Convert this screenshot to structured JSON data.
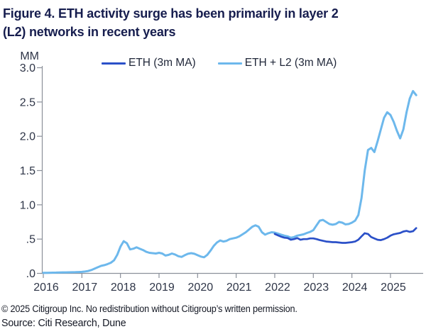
{
  "title": {
    "line1": "Figure 4. ETH activity surge has been primarily in layer 2",
    "line2": "(L2) networks in recent years"
  },
  "footer": {
    "copyright": "© 2025 Citigroup Inc. No redistribution without Citigroup’s written permission.",
    "source": "Source: Citi Research, Dune"
  },
  "chart_data": {
    "type": "line",
    "title": "ETH activity surge has been primarily in layer 2 (L2) networks in recent years",
    "unit_label": "MM",
    "xlabel": "",
    "ylabel": "MM",
    "ylim": [
      0,
      3.0
    ],
    "xlim": [
      2016,
      2025.75
    ],
    "grid": false,
    "legend_position": "top",
    "axis_color": "#8b909a",
    "label_color": "#2e3547",
    "y_ticks": [
      {
        "label": "3.0",
        "value": 3.0
      },
      {
        "label": "2.5",
        "value": 2.5
      },
      {
        "label": "2.0",
        "value": 2.0
      },
      {
        "label": "1.5",
        "value": 1.5
      },
      {
        "label": "1.0",
        "value": 1.0
      },
      {
        "label": ".5",
        "value": 0.5
      },
      {
        "label": ".0",
        "value": 0.0
      }
    ],
    "x_ticks": [
      {
        "label": "2016",
        "value": 2016
      },
      {
        "label": "2017",
        "value": 2017
      },
      {
        "label": "2018",
        "value": 2018
      },
      {
        "label": "2019",
        "value": 2019
      },
      {
        "label": "2020",
        "value": 2020
      },
      {
        "label": "2021",
        "value": 2021
      },
      {
        "label": "2022",
        "value": 2022
      },
      {
        "label": "2023",
        "value": 2023
      },
      {
        "label": "2024",
        "value": 2024
      },
      {
        "label": "2025",
        "value": 2025
      }
    ],
    "legend": [
      {
        "label": "ETH (3m MA)",
        "color": "#2b50c8"
      },
      {
        "label": "ETH + L2 (3m MA)",
        "color": "#6db8ec"
      }
    ],
    "series": [
      {
        "name": "ETH + L2 (3m MA)",
        "color": "#6db8ec",
        "start_year": 2016.0,
        "step_years": 0.0833333,
        "values": [
          0.008,
          0.008,
          0.009,
          0.01,
          0.011,
          0.013,
          0.014,
          0.015,
          0.016,
          0.017,
          0.018,
          0.02,
          0.022,
          0.028,
          0.035,
          0.05,
          0.07,
          0.09,
          0.11,
          0.12,
          0.135,
          0.155,
          0.19,
          0.27,
          0.39,
          0.47,
          0.44,
          0.35,
          0.36,
          0.38,
          0.36,
          0.34,
          0.315,
          0.3,
          0.295,
          0.29,
          0.3,
          0.29,
          0.26,
          0.27,
          0.29,
          0.275,
          0.25,
          0.24,
          0.265,
          0.285,
          0.295,
          0.285,
          0.265,
          0.245,
          0.235,
          0.27,
          0.33,
          0.4,
          0.45,
          0.48,
          0.465,
          0.475,
          0.5,
          0.51,
          0.52,
          0.54,
          0.57,
          0.6,
          0.64,
          0.68,
          0.7,
          0.68,
          0.6,
          0.565,
          0.585,
          0.6,
          0.595,
          0.58,
          0.565,
          0.55,
          0.54,
          0.52,
          0.53,
          0.55,
          0.56,
          0.57,
          0.59,
          0.605,
          0.63,
          0.7,
          0.77,
          0.78,
          0.75,
          0.72,
          0.71,
          0.72,
          0.75,
          0.74,
          0.715,
          0.72,
          0.74,
          0.77,
          0.85,
          1.1,
          1.5,
          1.8,
          1.83,
          1.77,
          1.93,
          2.1,
          2.27,
          2.35,
          2.31,
          2.21,
          2.08,
          1.97,
          2.1,
          2.35,
          2.55,
          2.66,
          2.6
        ]
      },
      {
        "name": "ETH (3m MA)",
        "color": "#2b50c8",
        "start_year": 2022.0,
        "step_years": 0.0833333,
        "values": [
          0.575,
          0.555,
          0.535,
          0.52,
          0.515,
          0.49,
          0.5,
          0.515,
          0.49,
          0.5,
          0.5,
          0.51,
          0.51,
          0.5,
          0.485,
          0.475,
          0.465,
          0.46,
          0.455,
          0.455,
          0.45,
          0.445,
          0.445,
          0.45,
          0.455,
          0.465,
          0.49,
          0.54,
          0.585,
          0.575,
          0.53,
          0.51,
          0.49,
          0.485,
          0.5,
          0.52,
          0.55,
          0.57,
          0.58,
          0.59,
          0.61,
          0.62,
          0.605,
          0.615,
          0.66
        ]
      }
    ]
  }
}
